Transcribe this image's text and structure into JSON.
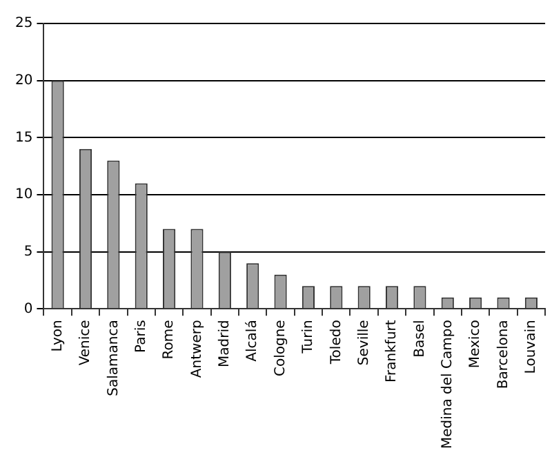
{
  "chart_data": {
    "type": "bar",
    "categories": [
      "Lyon",
      "Venice",
      "Salamanca",
      "Paris",
      "Rome",
      "Antwerp",
      "Madrid",
      "Alcalá",
      "Cologne",
      "Turin",
      "Toledo",
      "Seville",
      "Frankfurt",
      "Basel",
      "Medina del Campo",
      "Mexico",
      "Barcelona",
      "Louvain"
    ],
    "values": [
      20,
      14,
      13,
      11,
      7,
      7,
      5,
      4,
      3,
      2,
      2,
      2,
      2,
      2,
      1,
      1,
      1,
      1
    ],
    "color": "#a0a0a0",
    "ylim": [
      0,
      25
    ],
    "yticks": [
      0,
      5,
      10,
      15,
      20,
      25
    ],
    "grid": "y",
    "legend": false
  }
}
